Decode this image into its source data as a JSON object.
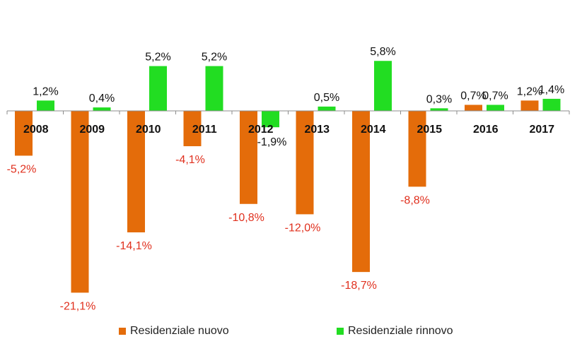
{
  "chart_data": {
    "type": "bar",
    "title": "",
    "xlabel": "",
    "ylabel": "",
    "ylim": [
      -22,
      7
    ],
    "grid": false,
    "legend_position": "bottom",
    "categories": [
      "2008",
      "2009",
      "2010",
      "2011",
      "2012",
      "2013",
      "2014",
      "2015",
      "2016",
      "2017"
    ],
    "series": [
      {
        "name": "Residenziale nuovo",
        "color": "#E46C0A",
        "values": [
          -5.2,
          -21.1,
          -14.1,
          -4.1,
          -10.8,
          -12.0,
          -18.7,
          -8.8,
          0.7,
          1.2
        ],
        "labels": [
          "-5,2%",
          "-21,1%",
          "-14,1%",
          "-4,1%",
          "-10,8%",
          "-12,0%",
          "-18,7%",
          "-8,8%",
          "0,7%",
          "1,2%"
        ]
      },
      {
        "name": "Residenziale rinnovo",
        "color": "#22DD22",
        "values": [
          1.2,
          0.4,
          5.2,
          5.2,
          -1.9,
          0.5,
          5.8,
          0.3,
          0.7,
          1.4
        ],
        "labels": [
          "1,2%",
          "0,4%",
          "5,2%",
          "5,2%",
          "-1,9%",
          "0,5%",
          "5,8%",
          "0,3%",
          "0,7%",
          "1,4%"
        ]
      }
    ],
    "label_colors": {
      "negative": "#E0301E",
      "positive": "#111111"
    }
  }
}
